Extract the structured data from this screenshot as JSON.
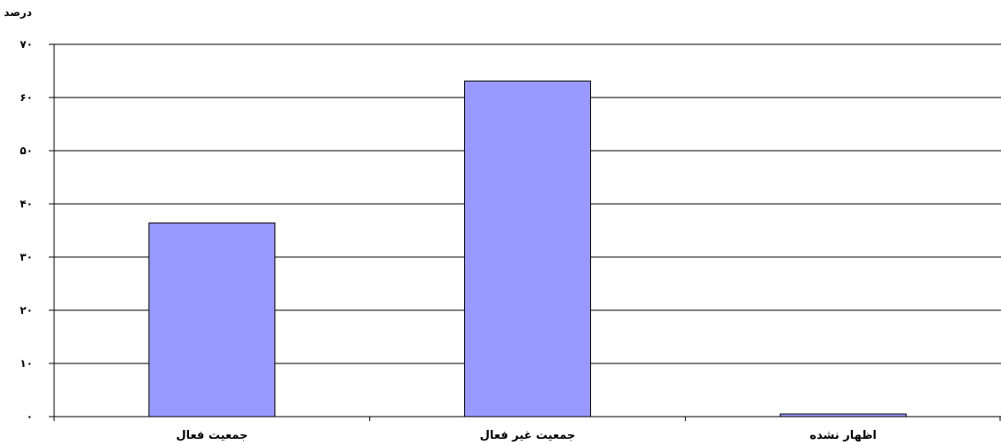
{
  "chart_data": {
    "type": "bar",
    "ylabel": "درصد",
    "categories": [
      "جمعیت فعال",
      "جمعیت غیر فعال",
      "اظهار نشده"
    ],
    "values": [
      36.4,
      63.1,
      0.5
    ],
    "ylim": [
      0,
      70
    ],
    "yticks": [
      0,
      10,
      20,
      30,
      40,
      50,
      60,
      70
    ],
    "ytick_labels": [
      "٠",
      "١٠",
      "٢٠",
      "٣٠",
      "۴٠",
      "۵٠",
      "۶٠",
      "٧٠"
    ],
    "grid": true,
    "legend": "none",
    "bar_color": "#9999ff",
    "bar_edge_color": "#000000",
    "gridline_color": "#000000"
  }
}
